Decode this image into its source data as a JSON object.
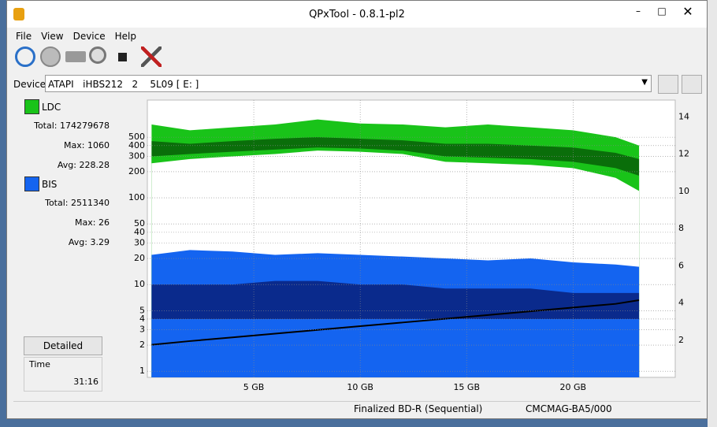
{
  "window": {
    "title": "QPxTool - 0.8.1-pl2",
    "menu": [
      "File",
      "View",
      "Device",
      "Help"
    ]
  },
  "device": {
    "label": "Device:",
    "value": "ATAPI   iHBS212   2    5L09 [ E: ]"
  },
  "stats": {
    "ldc": {
      "name": "LDC",
      "total_label": "Total:",
      "total": 174279678,
      "max_label": "Max:",
      "max": 1060,
      "avg_label": "Avg:",
      "avg": 228.28
    },
    "bis": {
      "name": "BIS",
      "total_label": "Total:",
      "total": 2511340,
      "max_label": "Max:",
      "max": 26,
      "avg_label": "Avg:",
      "avg": 3.29
    }
  },
  "buttons": {
    "detailed": "Detailed"
  },
  "time": {
    "label": "Time",
    "value": "31:16"
  },
  "status": [
    "Finalized BD-R (Sequential)",
    "CMCMAG-BA5/000"
  ],
  "chart_data": {
    "type": "area",
    "x": [
      0.2,
      2,
      4,
      6,
      8,
      10,
      12,
      14,
      16,
      18,
      20,
      22,
      23.1
    ],
    "series": [
      {
        "color": "#19c319",
        "values": [
          700,
          600,
          650,
          700,
          800,
          720,
          700,
          650,
          700,
          650,
          600,
          500,
          400
        ]
      },
      {
        "color": "#0a6e0a",
        "values": [
          450,
          420,
          450,
          480,
          500,
          480,
          460,
          420,
          420,
          400,
          380,
          330,
          280
        ]
      },
      {
        "color": "#19c319",
        "values": [
          300,
          320,
          340,
          360,
          380,
          370,
          350,
          300,
          290,
          280,
          260,
          220,
          180
        ]
      },
      {
        "color": "#ffffff",
        "values": [
          250,
          280,
          300,
          320,
          350,
          340,
          320,
          260,
          250,
          240,
          220,
          170,
          120
        ]
      },
      {
        "color": "#1464f0",
        "values": [
          22,
          25,
          24,
          22,
          23,
          22,
          21,
          20,
          19,
          20,
          18,
          17,
          16
        ]
      },
      {
        "color": "#0a2a8c",
        "values": [
          10,
          10,
          10,
          11,
          11,
          10,
          10,
          9,
          9,
          9,
          8,
          8,
          8
        ]
      },
      {
        "color": "#1464f0",
        "values": [
          4,
          4,
          4,
          4,
          4,
          4,
          4,
          4,
          4,
          4,
          4,
          4,
          4
        ]
      },
      {
        "type": "line",
        "axis": "y2",
        "color": "#000000",
        "values": [
          1.75,
          1.95,
          2.15,
          2.35,
          2.55,
          2.75,
          2.95,
          3.15,
          3.35,
          3.55,
          3.75,
          3.95,
          4.15
        ]
      }
    ],
    "xlim": [
      0,
      24.8
    ],
    "xticks": [
      {
        "value": 5,
        "label": "5 GB"
      },
      {
        "value": 10,
        "label": "10 GB"
      },
      {
        "value": 15,
        "label": "15 GB"
      },
      {
        "value": 20,
        "label": "20 GB"
      }
    ],
    "ylim": [
      0.85,
      1340
    ],
    "log_y": true,
    "yticks": [
      1,
      2,
      3,
      4,
      5,
      10,
      20,
      30,
      40,
      50,
      100,
      200,
      300,
      400,
      500
    ],
    "y2lim": [
      0,
      14.9
    ],
    "y2ticks": [
      2,
      4,
      6,
      8,
      10,
      12,
      14
    ],
    "grid": true
  }
}
